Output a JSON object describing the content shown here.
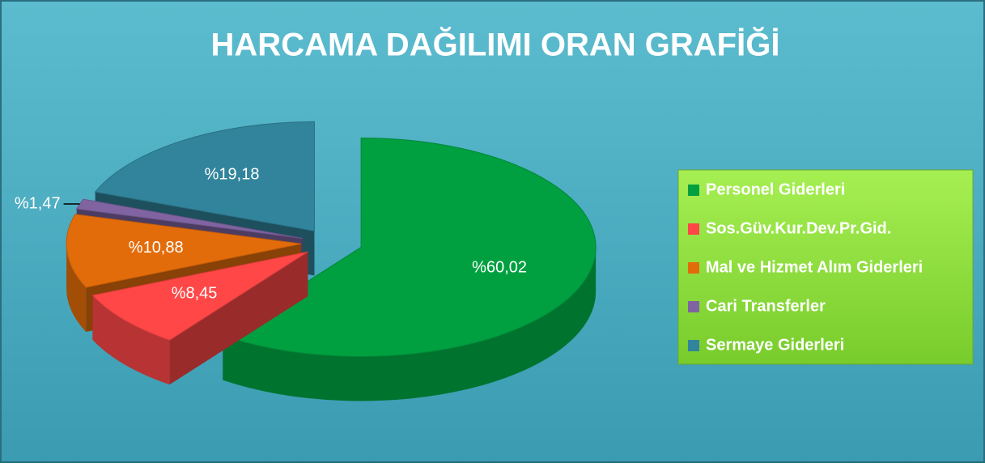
{
  "chart_data": {
    "type": "pie",
    "title": "HARCAMA DAĞILIMI ORAN GRAFİĞİ",
    "categories": [
      "Personel Giderleri",
      "Sos.Güv.Kur.Dev.Pr.Gid.",
      "Mal ve Hizmet Alım Giderleri",
      "Cari Transferler",
      "Sermaye Giderleri"
    ],
    "values": [
      60.02,
      8.45,
      10.88,
      1.47,
      19.18
    ],
    "value_labels": [
      "%60,02",
      "%8,45",
      "%10,88",
      "%1,47",
      "%19,18"
    ],
    "colors": [
      "#00a040",
      "#ff4747",
      "#e36c0a",
      "#8064a2",
      "#31849b"
    ],
    "legend": "right"
  }
}
